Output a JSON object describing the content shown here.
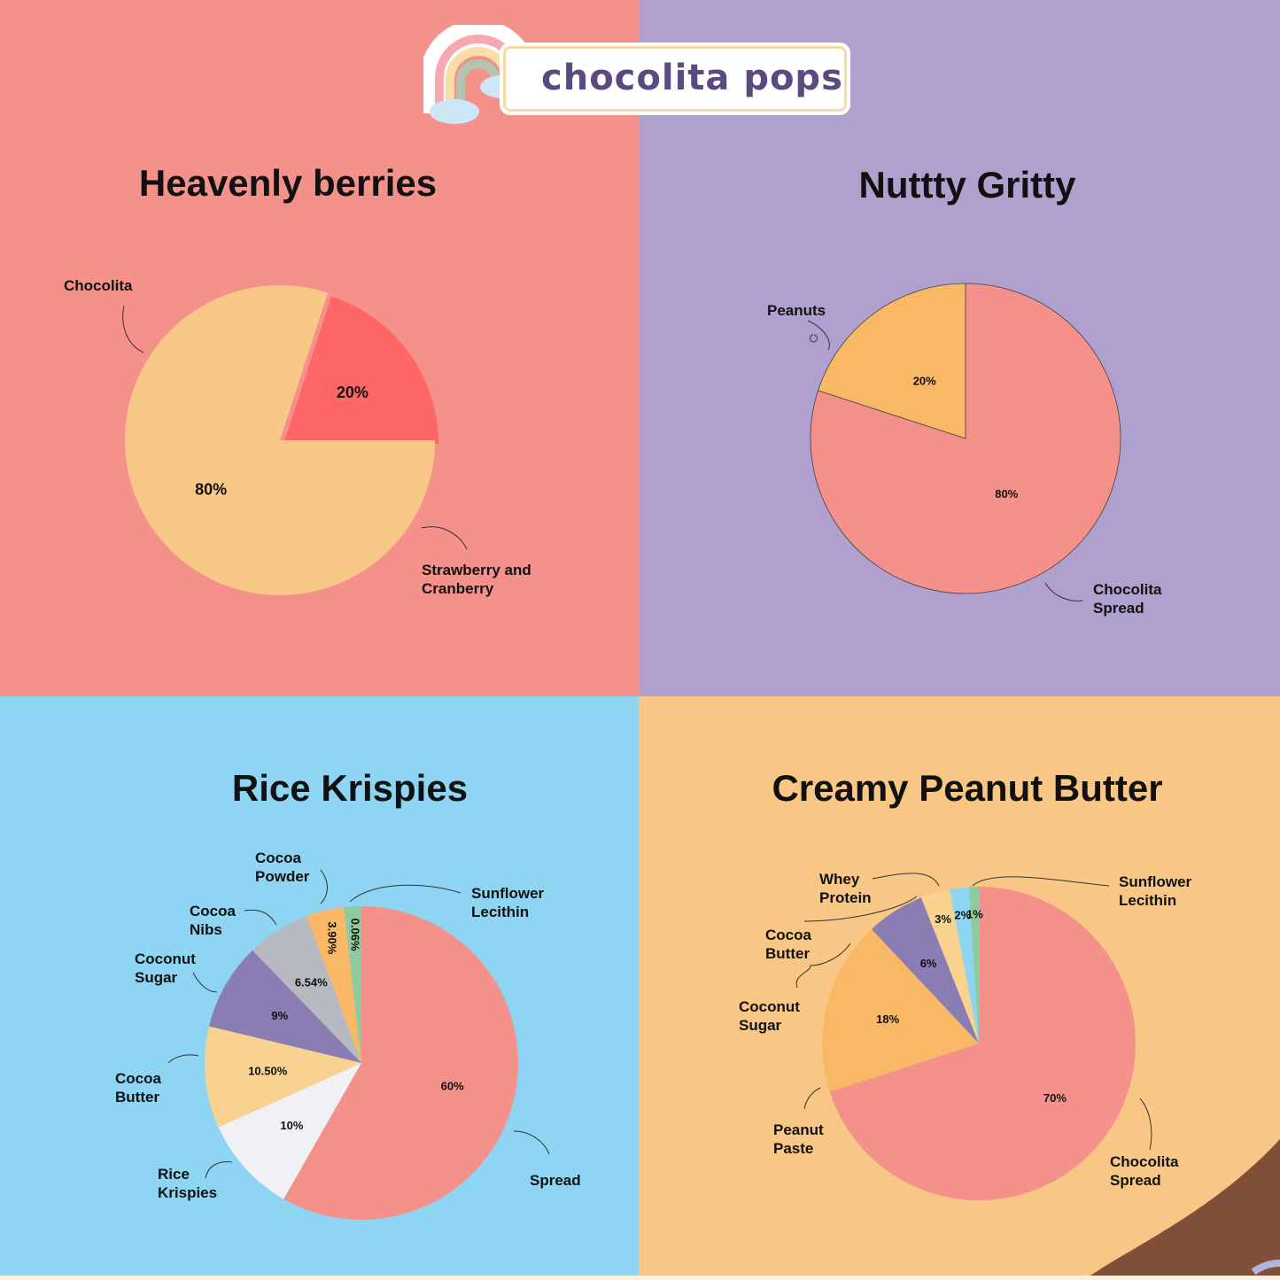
{
  "brand": {
    "name": "chocolita pops"
  },
  "colors": {
    "q1_bg": "#F4918A",
    "q2_bg": "#AFA0CD",
    "q3_bg": "#8DD5F2",
    "q4_bg": "#F9C785"
  },
  "chart_data": [
    {
      "type": "pie",
      "title": "Heavenly berries",
      "slices": [
        {
          "label": "Chocolita",
          "value": 80,
          "display": "80%",
          "color": "#F8C886"
        },
        {
          "label": "Strawberry and\nCranberry",
          "value": 20,
          "display": "20%",
          "color": "#FF6666"
        }
      ]
    },
    {
      "type": "pie",
      "title": "Nuttty Gritty",
      "slices": [
        {
          "label": "Chocolita\nSpread",
          "value": 80,
          "display": "80%",
          "color": "#F4918A"
        },
        {
          "label": "Peanuts",
          "value": 20,
          "display": "20%",
          "color": "#F9B866"
        }
      ]
    },
    {
      "type": "pie",
      "title": "Rice Krispies",
      "slices": [
        {
          "label": "Spread",
          "value": 60,
          "display": "60%",
          "color": "#F4918A"
        },
        {
          "label": "Rice\nKrispies",
          "value": 10,
          "display": "10%",
          "color": "#F0F0F5"
        },
        {
          "label": "Cocoa\nButter",
          "value": 10.5,
          "display": "10.50%",
          "color": "#F9D291"
        },
        {
          "label": "Coconut\nSugar",
          "value": 9,
          "display": "9%",
          "color": "#8A7DB3"
        },
        {
          "label": "Cocoa\nNibs",
          "value": 6.54,
          "display": "6.54%",
          "color": "#B7B9C1"
        },
        {
          "label": "Cocoa\nPowder",
          "value": 3.9,
          "display": "3.90%",
          "color": "#F9B866"
        },
        {
          "label": "Sunflower\nLecithin",
          "value": 0.06,
          "display": "0.06%",
          "color": "#8CCB9E"
        }
      ]
    },
    {
      "type": "pie",
      "title": "Creamy Peanut Butter",
      "slices": [
        {
          "label": "Chocolita\nSpread",
          "value": 70,
          "display": "70%",
          "color": "#F4918A"
        },
        {
          "label": "Peanut\nPaste",
          "value": 18,
          "display": "18%",
          "color": "#F9B866"
        },
        {
          "label": "Coconut\nSugar",
          "value": 6,
          "display": "6%",
          "color": "#8A7DB3"
        },
        {
          "label": "Cocoa\nButter",
          "value": 3,
          "display": "3%",
          "color": "#F9D291"
        },
        {
          "label": "Whey\nProtein",
          "value": 2,
          "display": "2%",
          "color": "#8DD5F2"
        },
        {
          "label": "Sunflower\nLecithin",
          "value": 1,
          "display": "1%",
          "color": "#8CCB9E"
        }
      ]
    }
  ]
}
